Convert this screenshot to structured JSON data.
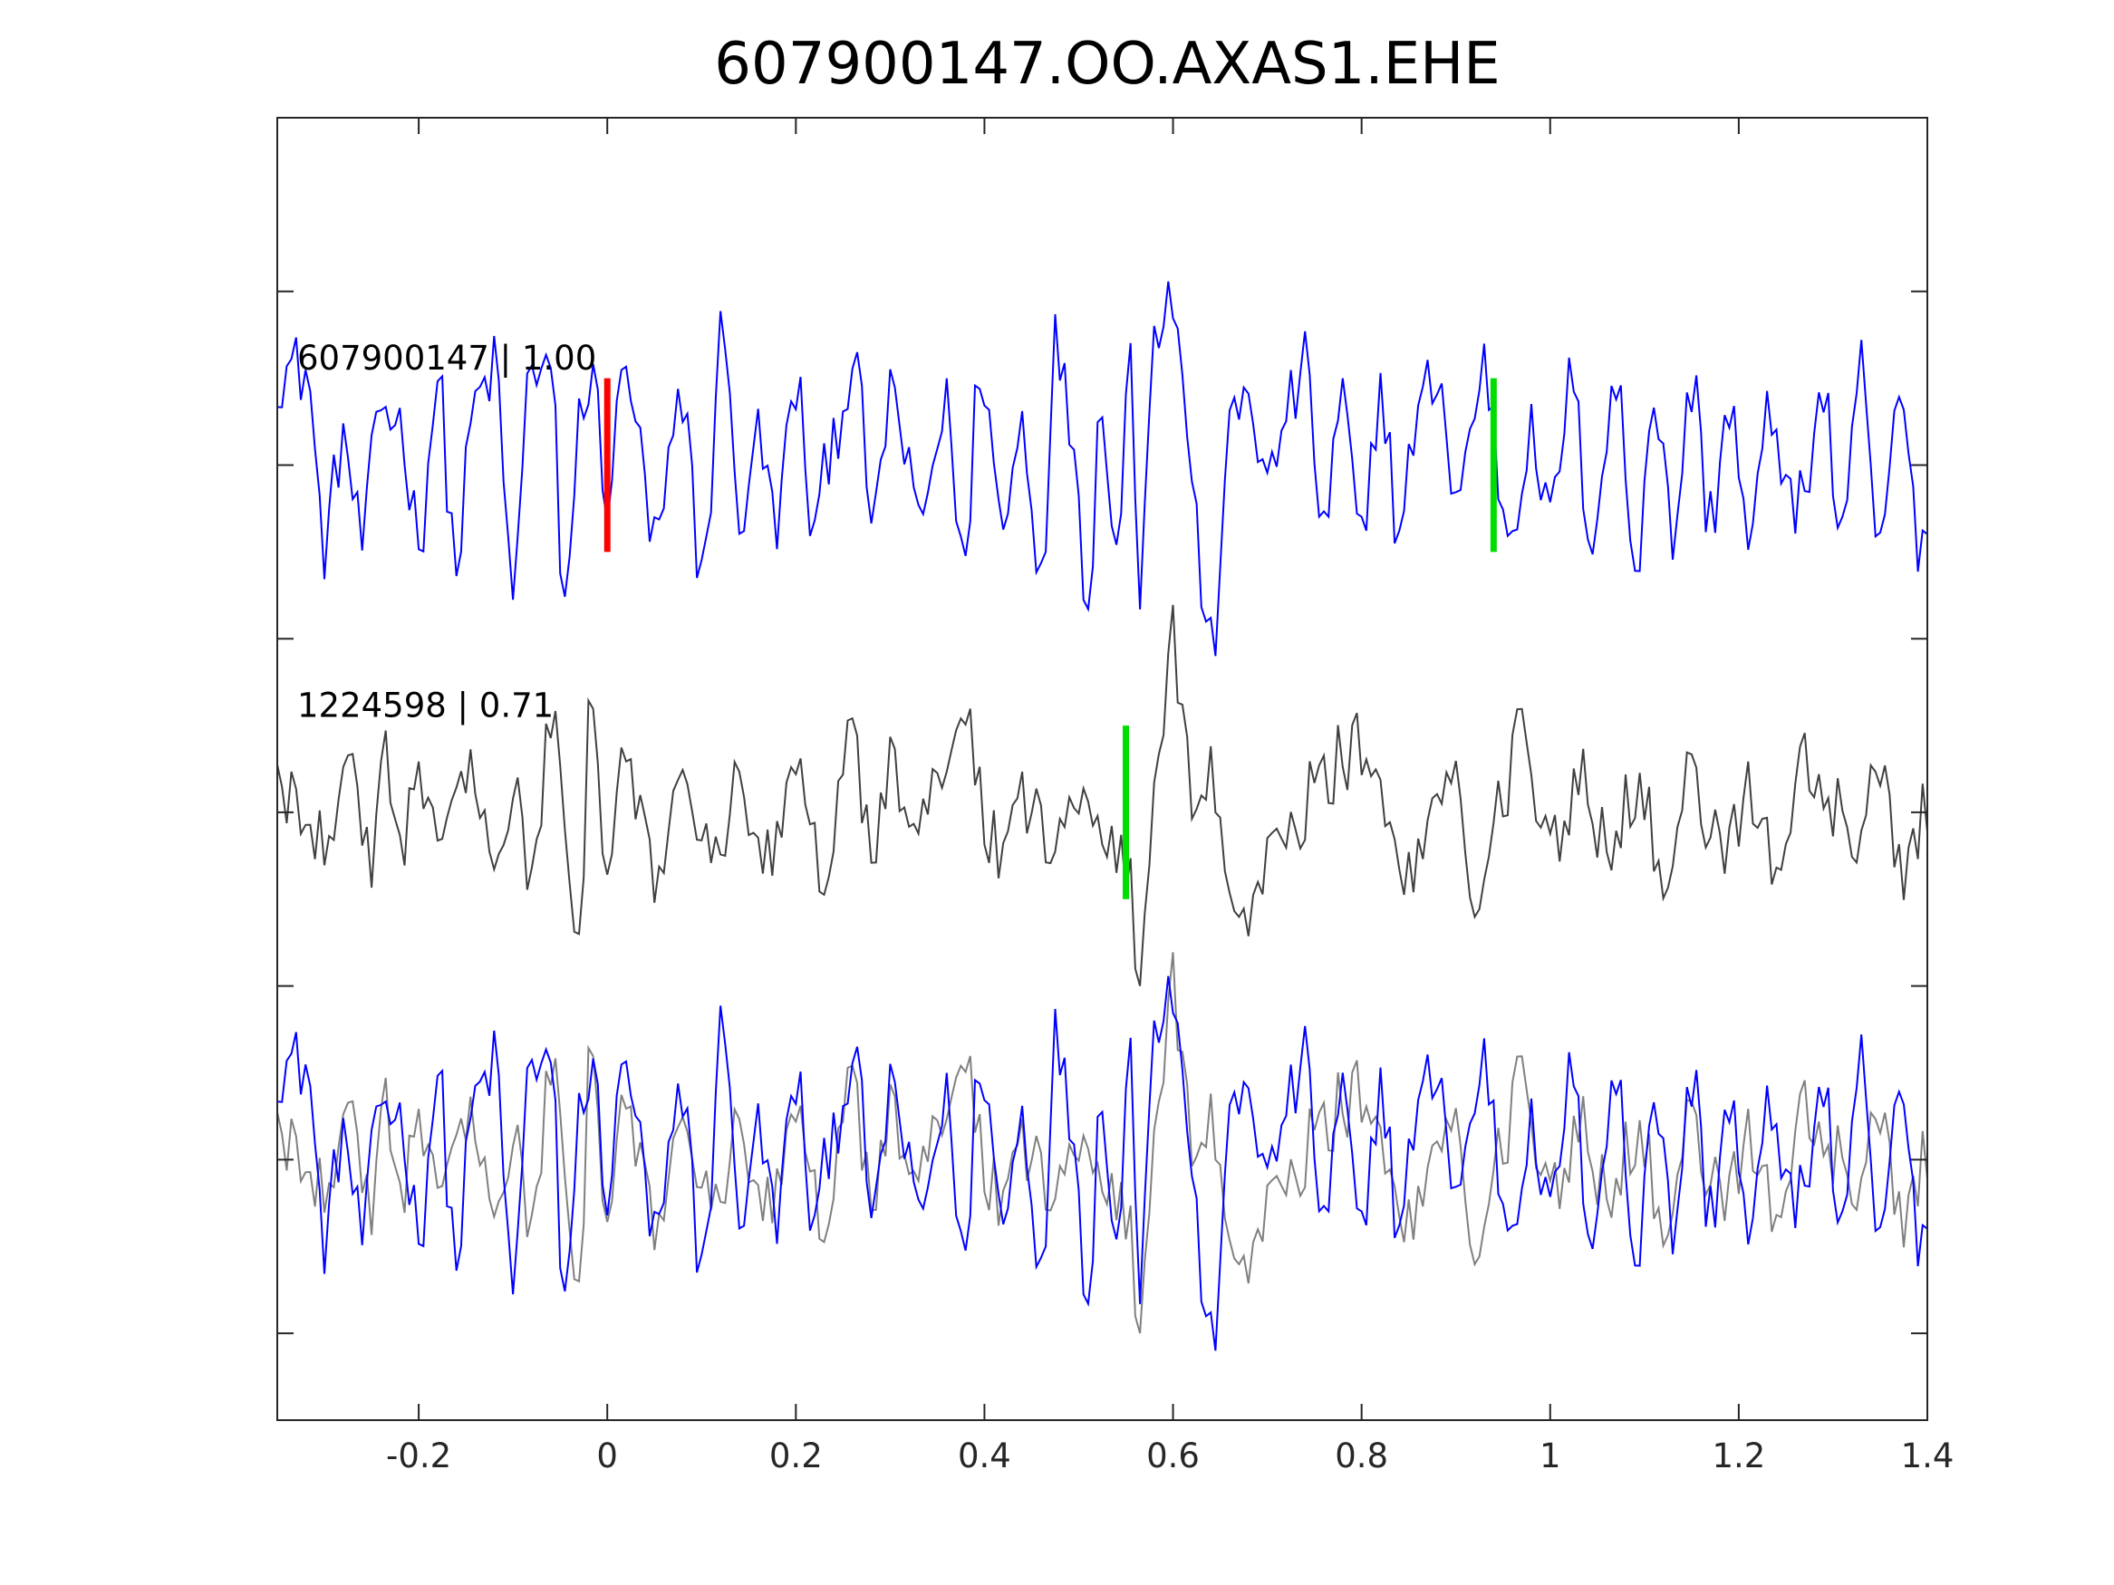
{
  "chart_data": {
    "type": "line",
    "title": "607900147.OO.AXAS1.EHE",
    "xlabel": "",
    "ylabel": "",
    "xlim": [
      -0.35,
      1.4
    ],
    "ylim": [
      0,
      7.5
    ],
    "x_ticks": [
      -0.2,
      0,
      0.2,
      0.4,
      0.6,
      0.8,
      1,
      1.2,
      1.4
    ],
    "x_tick_labels": [
      "-0.2",
      "0",
      "0.2",
      "0.4",
      "0.6",
      "0.8",
      "1",
      "1.2",
      "1.4"
    ],
    "y_ticks": [
      0.5,
      1.5,
      2.5,
      3.5,
      4.5,
      5.5,
      6.5
    ],
    "y_tick_labels": [
      "",
      "",
      "",
      "",
      "",
      "",
      ""
    ],
    "sample_interval": 0.005,
    "series": [
      {
        "label": "607900147 | 1.00",
        "color": "#0000ff",
        "offset": 5.5,
        "x_start": -0.35,
        "x_end": 1.4,
        "peaks": [
          [
            -0.32,
            0.55
          ],
          [
            -0.3,
            -0.45
          ],
          [
            -0.28,
            0.15
          ],
          [
            -0.26,
            -0.45
          ],
          [
            -0.24,
            0.35
          ],
          [
            -0.22,
            0.25
          ],
          [
            -0.2,
            -0.4
          ],
          [
            -0.18,
            0.45
          ],
          [
            -0.16,
            -0.55
          ],
          [
            -0.14,
            0.35
          ],
          [
            -0.12,
            0.55
          ],
          [
            -0.1,
            -0.7
          ],
          [
            -0.08,
            0.6
          ],
          [
            -0.06,
            0.55
          ],
          [
            -0.045,
            -0.95
          ],
          [
            -0.03,
            0.3
          ],
          [
            -0.015,
            0.45
          ],
          [
            0.0,
            -0.15
          ],
          [
            0.02,
            0.55
          ],
          [
            0.05,
            -0.45
          ],
          [
            0.08,
            0.3
          ],
          [
            0.1,
            -0.6
          ],
          [
            0.125,
            0.85
          ],
          [
            0.14,
            -0.5
          ],
          [
            0.155,
            0.2
          ],
          [
            0.18,
            -0.3
          ],
          [
            0.2,
            0.45
          ],
          [
            0.22,
            -0.4
          ],
          [
            0.24,
            0.2
          ],
          [
            0.26,
            0.55
          ],
          [
            0.285,
            -0.35
          ],
          [
            0.3,
            0.45
          ],
          [
            0.33,
            -0.3
          ],
          [
            0.36,
            0.3
          ],
          [
            0.38,
            -0.6
          ],
          [
            0.395,
            0.6
          ],
          [
            0.42,
            -0.35
          ],
          [
            0.44,
            0.25
          ],
          [
            0.46,
            -0.6
          ],
          [
            0.475,
            0.7
          ],
          [
            0.49,
            0.3
          ],
          [
            0.51,
            -0.7
          ],
          [
            0.525,
            0.4
          ],
          [
            0.54,
            -0.5
          ],
          [
            0.555,
            0.6
          ],
          [
            0.565,
            -0.65
          ],
          [
            0.58,
            0.85
          ],
          [
            0.6,
            0.95
          ],
          [
            0.61,
            0.6
          ],
          [
            0.62,
            -0.2
          ],
          [
            0.64,
            -1.1
          ],
          [
            0.66,
            0.15
          ],
          [
            0.68,
            0.45
          ],
          [
            0.7,
            -0.15
          ],
          [
            0.72,
            0.3
          ],
          [
            0.74,
            0.55
          ],
          [
            0.76,
            -0.35
          ],
          [
            0.78,
            0.35
          ],
          [
            0.8,
            -0.5
          ],
          [
            0.82,
            0.45
          ],
          [
            0.84,
            -0.4
          ],
          [
            0.86,
            0.3
          ],
          [
            0.88,
            0.55
          ],
          [
            0.9,
            -0.2
          ],
          [
            0.93,
            0.55
          ],
          [
            0.955,
            -0.35
          ],
          [
            0.98,
            0.15
          ],
          [
            1.0,
            -0.35
          ],
          [
            1.02,
            0.45
          ],
          [
            1.045,
            -0.35
          ],
          [
            1.07,
            0.45
          ],
          [
            1.09,
            -0.55
          ],
          [
            1.11,
            0.4
          ],
          [
            1.13,
            -0.4
          ],
          [
            1.15,
            0.45
          ],
          [
            1.17,
            -0.3
          ],
          [
            1.19,
            0.35
          ],
          [
            1.21,
            -0.45
          ],
          [
            1.235,
            0.3
          ],
          [
            1.26,
            -0.3
          ],
          [
            1.29,
            0.4
          ],
          [
            1.31,
            -0.5
          ],
          [
            1.33,
            0.55
          ],
          [
            1.35,
            -0.55
          ],
          [
            1.37,
            0.4
          ],
          [
            1.39,
            -0.4
          ]
        ],
        "markers": [
          {
            "x": 0.0,
            "color": "#ff0000",
            "y_low": 5.0,
            "y_high": 6.0
          },
          {
            "x": 0.94,
            "color": "#00dd00",
            "y_low": 5.0,
            "y_high": 6.0
          }
        ]
      },
      {
        "label": "1224598 | 0.71",
        "color": "#404040",
        "offset": 3.5,
        "x_start": -0.35,
        "x_end": 1.4,
        "peaks": [
          [
            -0.33,
            0.1
          ],
          [
            -0.3,
            -0.1
          ],
          [
            -0.27,
            0.2
          ],
          [
            -0.25,
            -0.3
          ],
          [
            -0.235,
            0.4
          ],
          [
            -0.22,
            -0.25
          ],
          [
            -0.2,
            0.3
          ],
          [
            -0.18,
            -0.2
          ],
          [
            -0.15,
            0.25
          ],
          [
            -0.12,
            -0.15
          ],
          [
            -0.1,
            0.15
          ],
          [
            -0.08,
            -0.3
          ],
          [
            -0.06,
            0.5
          ],
          [
            -0.04,
            -0.35
          ],
          [
            -0.03,
            -0.9
          ],
          [
            -0.02,
            0.55
          ],
          [
            0.0,
            -0.15
          ],
          [
            0.02,
            0.2
          ],
          [
            0.05,
            -0.35
          ],
          [
            0.08,
            0.15
          ],
          [
            0.11,
            -0.25
          ],
          [
            0.14,
            0.1
          ],
          [
            0.16,
            -0.35
          ],
          [
            0.19,
            0.05
          ],
          [
            0.2,
            0.35
          ],
          [
            0.23,
            -0.35
          ],
          [
            0.26,
            0.5
          ],
          [
            0.28,
            -0.2
          ],
          [
            0.3,
            0.25
          ],
          [
            0.33,
            -0.15
          ],
          [
            0.36,
            0.25
          ],
          [
            0.38,
            0.45
          ],
          [
            0.41,
            -0.2
          ],
          [
            0.44,
            0.1
          ],
          [
            0.47,
            -0.2
          ],
          [
            0.5,
            0.2
          ],
          [
            0.53,
            -0.2
          ],
          [
            0.55,
            -0.3
          ],
          [
            0.565,
            -0.95
          ],
          [
            0.585,
            0.2
          ],
          [
            0.6,
            1.05
          ],
          [
            0.61,
            0.6
          ],
          [
            0.625,
            -0.1
          ],
          [
            0.64,
            0.25
          ],
          [
            0.655,
            -0.3
          ],
          [
            0.68,
            -0.65
          ],
          [
            0.7,
            -0.35
          ],
          [
            0.72,
            -0.2
          ],
          [
            0.75,
            0.1
          ],
          [
            0.78,
            0.3
          ],
          [
            0.8,
            0.4
          ],
          [
            0.82,
            0.1
          ],
          [
            0.84,
            -0.35
          ],
          [
            0.87,
            -0.15
          ],
          [
            0.9,
            0.2
          ],
          [
            0.92,
            -0.4
          ],
          [
            0.94,
            -0.05
          ],
          [
            0.97,
            0.45
          ],
          [
            1.0,
            -0.25
          ],
          [
            1.03,
            0.2
          ],
          [
            1.06,
            -0.2
          ],
          [
            1.09,
            0.15
          ],
          [
            1.12,
            -0.3
          ],
          [
            1.15,
            0.2
          ],
          [
            1.18,
            -0.2
          ],
          [
            1.21,
            0.1
          ],
          [
            1.24,
            -0.25
          ],
          [
            1.27,
            0.25
          ],
          [
            1.3,
            0.05
          ],
          [
            1.33,
            -0.15
          ],
          [
            1.35,
            0.35
          ],
          [
            1.37,
            -0.4
          ],
          [
            1.385,
            -0.15
          ],
          [
            1.4,
            0.05
          ]
        ],
        "markers": [
          {
            "x": 0.55,
            "color": "#00dd00",
            "y_low": 3.0,
            "y_high": 4.0
          }
        ]
      },
      {
        "label": "",
        "color": "#0000ff",
        "offset": 1.5,
        "x_start": -0.35,
        "x_end": 1.4,
        "source_series": 0,
        "markers": []
      },
      {
        "label": "",
        "color": "#808080",
        "offset": 1.5,
        "x_start": -0.35,
        "x_end": 1.4,
        "source_series": 1,
        "markers": []
      }
    ],
    "grid": false,
    "legend": "none"
  }
}
